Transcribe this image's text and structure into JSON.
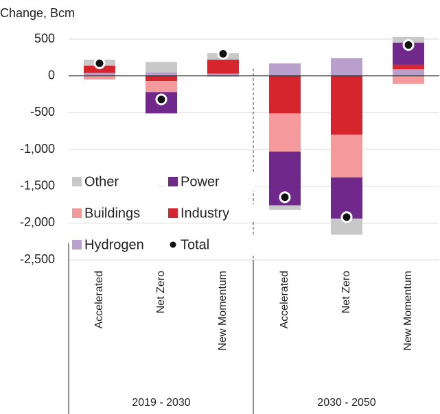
{
  "chart_data": {
    "type": "bar",
    "stacked": true,
    "y_axis_label": "Change, Bcm",
    "groups": [
      "2019 - 2030",
      "2030 - 2050"
    ],
    "categories": [
      "Accelerated",
      "Net Zero",
      "New Momentum",
      "Accelerated",
      "Net Zero",
      "New Momentum"
    ],
    "series": [
      {
        "name": "Other",
        "color": "#c8c8c8",
        "values": [
          80,
          140,
          90,
          -60,
          -220,
          80
        ]
      },
      {
        "name": "Power",
        "color": "#70298a",
        "values": [
          0,
          -290,
          0,
          -730,
          -560,
          300
        ]
      },
      {
        "name": "Buildings",
        "color": "#f49a9c",
        "values": [
          -50,
          -150,
          -10,
          -520,
          -580,
          -110
        ]
      },
      {
        "name": "Industry",
        "color": "#d6252d",
        "values": [
          100,
          -70,
          190,
          -510,
          -800,
          60
        ]
      },
      {
        "name": "Hydrogen",
        "color": "#b9a0cc",
        "values": [
          40,
          50,
          30,
          170,
          240,
          90
        ]
      },
      {
        "name": "Total",
        "type": "dot",
        "color": "#111111",
        "values": [
          170,
          -320,
          300,
          -1650,
          -1920,
          420
        ]
      }
    ],
    "ylim": [
      -2500,
      500
    ],
    "yticks": [
      {
        "value": -2500,
        "label": "-2,500"
      },
      {
        "value": -2000,
        "label": "-2,000"
      },
      {
        "value": -1500,
        "label": "-1,500"
      },
      {
        "value": -1000,
        "label": "-1,000"
      },
      -500,
      0,
      500
    ],
    "grid": true,
    "legend": "lower left"
  }
}
